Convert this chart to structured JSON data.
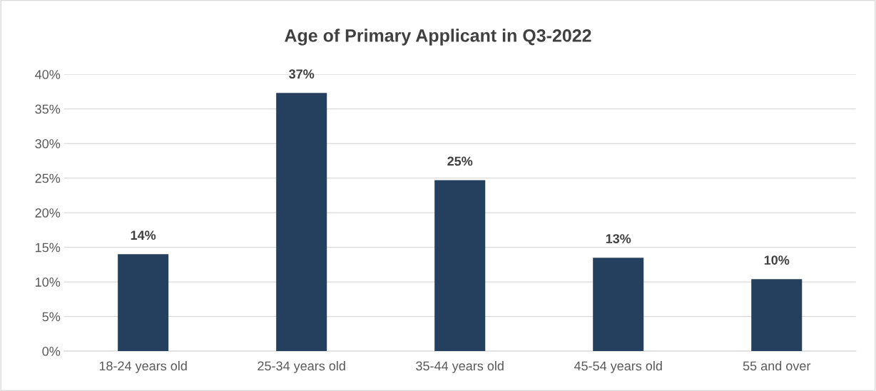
{
  "chart_data": {
    "type": "bar",
    "title": "Age of Primary Applicant in Q3-2022",
    "categories": [
      "18-24 years old",
      "25-34 years old",
      "35-44 years old",
      "45-54 years old",
      "55 and over"
    ],
    "values": [
      14.0,
      37.3,
      24.7,
      13.5,
      10.4
    ],
    "value_labels": [
      "14%",
      "37%",
      "25%",
      "13%",
      "10%"
    ],
    "color": "#253f5f",
    "ylim": [
      0,
      40
    ],
    "yticks": [
      {
        "value": 0,
        "label": "0%"
      },
      {
        "value": 5,
        "label": "5%"
      },
      {
        "value": 10,
        "label": "10%"
      },
      {
        "value": 15,
        "label": "15%"
      },
      {
        "value": 20,
        "label": "20%"
      },
      {
        "value": 25,
        "label": "25%"
      },
      {
        "value": 30,
        "label": "30%"
      },
      {
        "value": 35,
        "label": "35%"
      },
      {
        "value": 40,
        "label": "40%"
      }
    ],
    "grid": "y",
    "legend": false
  }
}
